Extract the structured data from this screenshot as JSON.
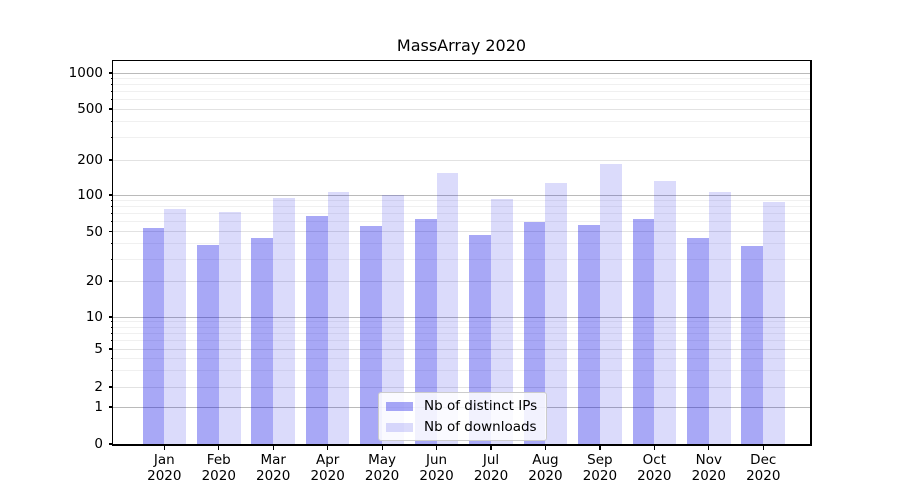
{
  "chart_data": {
    "type": "bar",
    "title": "MassArray 2020",
    "categories": [
      "Jan",
      "Feb",
      "Mar",
      "Apr",
      "May",
      "Jun",
      "Jul",
      "Aug",
      "Sep",
      "Oct",
      "Nov",
      "Dec"
    ],
    "year": "2020",
    "series": [
      {
        "name": "Nb of distinct IPs",
        "color": "rgba(0,0,230,0.34)",
        "color_hex": "#a8a8f7",
        "values": [
          53,
          39,
          44,
          67,
          55,
          63,
          47,
          60,
          57,
          64,
          44,
          38
        ]
      },
      {
        "name": "Nb of downloads",
        "color": "rgba(0,0,230,0.14)",
        "color_hex": "#dbdbfb",
        "values": [
          77,
          73,
          95,
          107,
          100,
          156,
          92,
          127,
          185,
          132,
          107,
          88
        ]
      }
    ],
    "yscale": "asinh (logarithmic above ~5, compressed toward 0)",
    "ylim": [
      0,
      1300
    ],
    "y_ticks": [
      0,
      1,
      2,
      5,
      10,
      20,
      50,
      100,
      200,
      500,
      1000
    ],
    "y_minor_ticks": [
      3,
      4,
      6,
      7,
      8,
      9,
      30,
      40,
      60,
      70,
      80,
      90,
      300,
      400,
      600,
      700,
      800,
      900
    ],
    "grid": {
      "major_color": "#bababa",
      "mid_color": "#e2e2e2",
      "minor_color": "#f0f0f0"
    },
    "legend": {
      "location": "lower center",
      "entries": [
        "Nb of distinct IPs",
        "Nb of downloads"
      ]
    },
    "style": {
      "spine_color": "#000000",
      "text_color": "#000000",
      "legend_border": "#cccccc",
      "background": "#ffffff"
    }
  }
}
